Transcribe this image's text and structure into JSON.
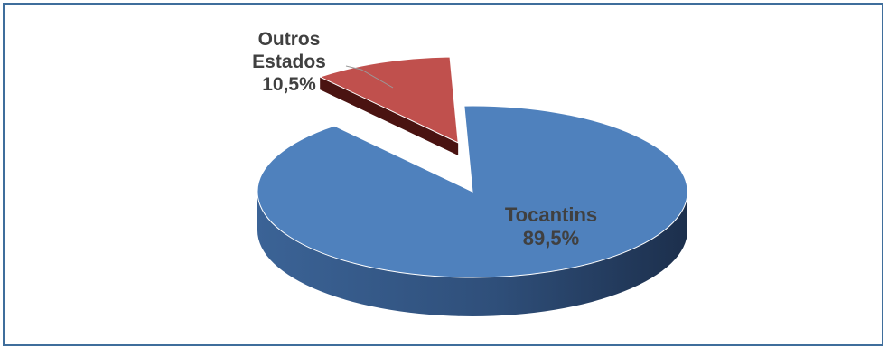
{
  "chart_data": {
    "type": "pie",
    "title": "",
    "slices": [
      {
        "label": "Outros Estados",
        "label_lines": [
          "Outros",
          "Estados"
        ],
        "value": 10.5,
        "value_text": "10,5%",
        "color": "#c0504d"
      },
      {
        "label": "Tocantins",
        "label_lines": [
          "Tocantins"
        ],
        "value": 89.5,
        "value_text": "89,5%",
        "color": "#4f81bd"
      }
    ],
    "style": "3d",
    "exploded_slice": "Outros Estados",
    "legend": "none"
  }
}
